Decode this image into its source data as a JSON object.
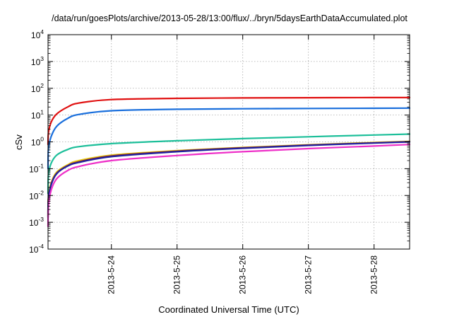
{
  "chart_data": {
    "type": "line",
    "title": "/data/run/goesPlots/archive/2013-05-28/13:00/flux/../bryn/5daysEarthDataAccumulated.plot",
    "xlabel": "Coordinated Universal Time (UTC)",
    "ylabel": "cSv",
    "x_unit": "days",
    "xlim": [
      "2013-05-23 00:50",
      "2013-05-28 13:00"
    ],
    "x_ticks": [
      "2013-5-24",
      "2013-5-25",
      "2013-5-26",
      "2013-5-27",
      "2013-5-28"
    ],
    "x_tick_dates": [
      "2013-05-24",
      "2013-05-25",
      "2013-05-26",
      "2013-05-27",
      "2013-05-28"
    ],
    "y_scale": "log",
    "ylim": [
      0.0001,
      10000
    ],
    "y_ticks": [
      {
        "value": 0.0001,
        "base": "10",
        "exp": "-4"
      },
      {
        "value": 0.001,
        "base": "10",
        "exp": "-3"
      },
      {
        "value": 0.01,
        "base": "10",
        "exp": "-2"
      },
      {
        "value": 0.1,
        "base": "10",
        "exp": "-1"
      },
      {
        "value": 1,
        "base": "10",
        "exp": "0"
      },
      {
        "value": 10,
        "base": "10",
        "exp": "1"
      },
      {
        "value": 100,
        "base": "10",
        "exp": "2"
      },
      {
        "value": 1000,
        "base": "10",
        "exp": "3"
      },
      {
        "value": 10000,
        "base": "10",
        "exp": "4"
      }
    ],
    "grid": true,
    "legend": "none",
    "series": [
      {
        "color": "#e01010",
        "x": [
          "2013-05-23 00:50",
          "2013-05-23 01:00",
          "2013-05-23 02:00",
          "2013-05-23 04:00",
          "2013-05-23 08:00",
          "2013-05-23 12:00",
          "2013-05-24 00:00",
          "2013-05-25 00:00",
          "2013-05-26 00:00",
          "2013-05-27 00:00",
          "2013-05-28 00:00",
          "2013-05-28 13:00"
        ],
        "y": [
          0.8,
          2.2,
          5.5,
          11,
          20,
          28,
          38,
          42,
          43.5,
          44.5,
          45,
          45
        ]
      },
      {
        "color": "#1a6fdc",
        "x": [
          "2013-05-23 00:50",
          "2013-05-23 01:00",
          "2013-05-23 02:00",
          "2013-05-23 04:00",
          "2013-05-23 08:00",
          "2013-05-23 12:00",
          "2013-05-24 00:00",
          "2013-05-25 00:00",
          "2013-05-26 00:00",
          "2013-05-27 00:00",
          "2013-05-28 00:00",
          "2013-05-28 13:00"
        ],
        "y": [
          0.1,
          0.55,
          1.6,
          3.8,
          7.5,
          10.5,
          14.5,
          16.5,
          17.2,
          17.6,
          18,
          18.2
        ]
      },
      {
        "color": "#1dbf9a",
        "x": [
          "2013-05-23 00:50",
          "2013-05-23 01:00",
          "2013-05-23 02:00",
          "2013-05-23 04:00",
          "2013-05-23 08:00",
          "2013-05-23 12:00",
          "2013-05-24 00:00",
          "2013-05-25 00:00",
          "2013-05-26 00:00",
          "2013-05-27 00:00",
          "2013-05-28 00:00",
          "2013-05-28 13:00"
        ],
        "y": [
          0.012,
          0.06,
          0.16,
          0.32,
          0.52,
          0.66,
          0.86,
          1.1,
          1.32,
          1.55,
          1.8,
          1.95
        ]
      },
      {
        "color": "#e8d020",
        "x": [
          "2013-05-23 00:50",
          "2013-05-23 01:00",
          "2013-05-23 02:00",
          "2013-05-23 04:00",
          "2013-05-23 08:00",
          "2013-05-23 12:00",
          "2013-05-24 00:00",
          "2013-05-25 00:00",
          "2013-05-26 00:00",
          "2013-05-27 00:00",
          "2013-05-28 00:00",
          "2013-05-28 13:00"
        ],
        "y": [
          0.0018,
          0.009,
          0.03,
          0.075,
          0.14,
          0.2,
          0.32,
          0.47,
          0.62,
          0.78,
          0.95,
          1.05
        ]
      },
      {
        "color": "#8a2a2a",
        "x": [
          "2013-05-23 00:50",
          "2013-05-23 01:00",
          "2013-05-23 02:00",
          "2013-05-23 04:00",
          "2013-05-23 08:00",
          "2013-05-23 12:00",
          "2013-05-24 00:00",
          "2013-05-25 00:00",
          "2013-05-26 00:00",
          "2013-05-27 00:00",
          "2013-05-28 00:00",
          "2013-05-28 13:00"
        ],
        "y": [
          0.0016,
          0.008,
          0.027,
          0.068,
          0.13,
          0.18,
          0.3,
          0.45,
          0.6,
          0.76,
          0.92,
          1.02
        ]
      },
      {
        "color": "#2020a0",
        "x": [
          "2013-05-23 00:50",
          "2013-05-23 01:00",
          "2013-05-23 02:00",
          "2013-05-23 04:00",
          "2013-05-23 08:00",
          "2013-05-23 12:00",
          "2013-05-24 00:00",
          "2013-05-25 00:00",
          "2013-05-26 00:00",
          "2013-05-27 00:00",
          "2013-05-28 00:00",
          "2013-05-28 13:00"
        ],
        "y": [
          0.0015,
          0.0075,
          0.025,
          0.065,
          0.125,
          0.17,
          0.28,
          0.43,
          0.58,
          0.74,
          0.9,
          1.0
        ]
      },
      {
        "color": "#ee30c8",
        "x": [
          "2013-05-23 00:50",
          "2013-05-23 01:00",
          "2013-05-23 02:00",
          "2013-05-23 04:00",
          "2013-05-23 08:00",
          "2013-05-23 12:00",
          "2013-05-24 00:00",
          "2013-05-25 00:00",
          "2013-05-26 00:00",
          "2013-05-27 00:00",
          "2013-05-28 00:00",
          "2013-05-28 13:00"
        ],
        "y": [
          0.0007,
          0.004,
          0.016,
          0.042,
          0.085,
          0.12,
          0.2,
          0.31,
          0.43,
          0.56,
          0.7,
          0.8
        ]
      }
    ]
  }
}
